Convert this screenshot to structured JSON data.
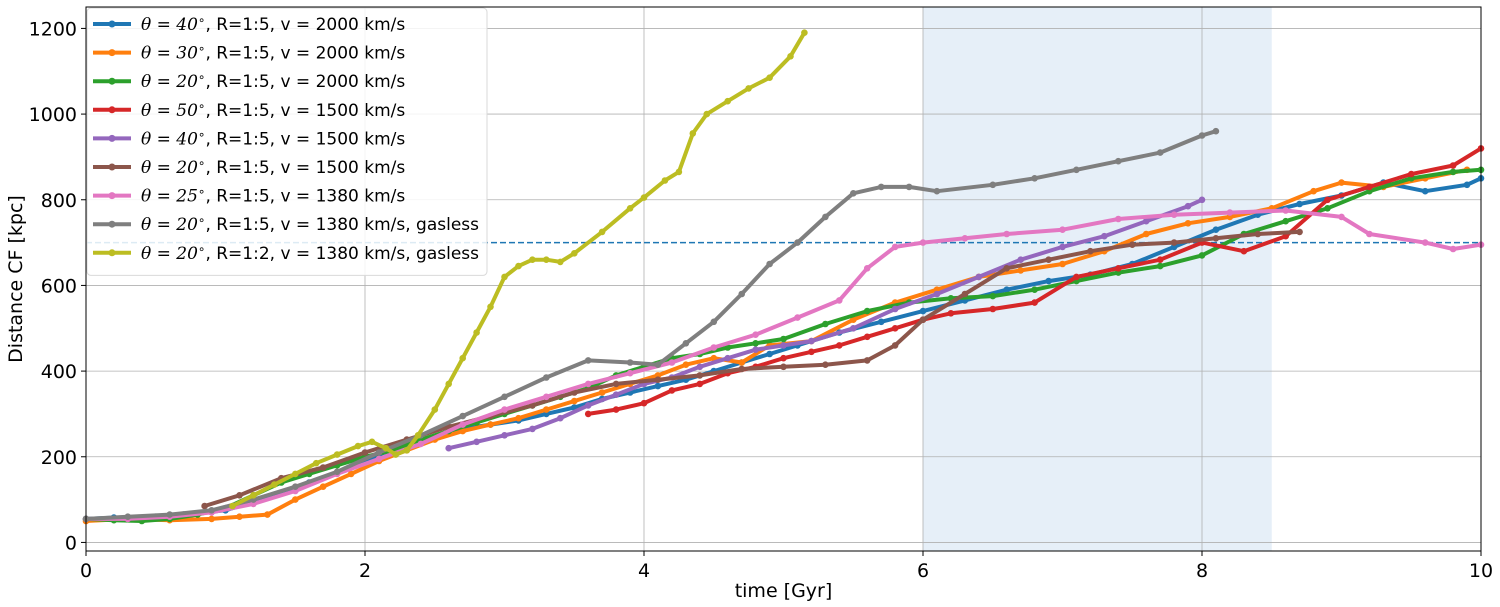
{
  "chart_data": {
    "type": "line",
    "xlabel": "time [Gyr]",
    "ylabel": "Distance CF [kpc]",
    "xlim": [
      0,
      10
    ],
    "ylim": [
      -20,
      1250
    ],
    "xticks": [
      0,
      2,
      4,
      6,
      8,
      10
    ],
    "yticks": [
      0,
      200,
      400,
      600,
      800,
      1000,
      1200
    ],
    "grid": true,
    "legend_position": "top-left",
    "shaded_region": {
      "x": [
        6.0,
        8.5
      ],
      "color": "#e6eff8"
    },
    "reference_line": {
      "y": 700,
      "style": "dashed",
      "color": "#1f77b4"
    },
    "series": [
      {
        "name": "θ = 40°, R=1:5, v = 2000 km/s",
        "theta_sym": "θ = 40",
        "rest": ", R=1:5, v = 2000 km/s",
        "color": "#1f77b4",
        "x": [
          0,
          0.2,
          0.5,
          0.7,
          1.0,
          1.3,
          1.6,
          1.9,
          2.1,
          2.4,
          2.7,
          2.9,
          3.1,
          3.3,
          3.5,
          3.7,
          3.9,
          4.1,
          4.3,
          4.5,
          4.7,
          4.9,
          5.1,
          5.4,
          5.7,
          6.0,
          6.3,
          6.6,
          6.9,
          7.2,
          7.5,
          7.8,
          8.1,
          8.4,
          8.7,
          9.0,
          9.3,
          9.6,
          9.9,
          10.0
        ],
        "y": [
          55,
          58,
          60,
          65,
          75,
          105,
          140,
          175,
          205,
          240,
          265,
          275,
          285,
          300,
          315,
          335,
          350,
          365,
          380,
          400,
          420,
          440,
          460,
          490,
          515,
          540,
          565,
          590,
          610,
          625,
          650,
          690,
          730,
          765,
          790,
          810,
          840,
          820,
          835,
          850
        ]
      },
      {
        "name": "θ = 30°, R=1:5, v = 2000 km/s",
        "theta_sym": "θ = 30",
        "rest": ", R=1:5, v = 2000 km/s",
        "color": "#ff7f0e",
        "x": [
          0,
          0.3,
          0.6,
          0.9,
          1.1,
          1.3,
          1.5,
          1.7,
          1.9,
          2.1,
          2.3,
          2.5,
          2.7,
          2.9,
          3.1,
          3.3,
          3.5,
          3.7,
          3.9,
          4.1,
          4.3,
          4.5,
          4.7,
          4.9,
          5.2,
          5.5,
          5.8,
          6.1,
          6.4,
          6.7,
          7.0,
          7.3,
          7.6,
          7.9,
          8.2,
          8.5,
          8.8,
          9.0,
          9.3,
          9.6,
          9.9
        ],
        "y": [
          50,
          55,
          52,
          55,
          60,
          65,
          100,
          130,
          160,
          190,
          215,
          240,
          260,
          275,
          290,
          310,
          330,
          350,
          370,
          390,
          415,
          430,
          420,
          460,
          470,
          520,
          560,
          590,
          620,
          635,
          650,
          680,
          720,
          745,
          760,
          780,
          820,
          840,
          830,
          850,
          870
        ]
      },
      {
        "name": "θ = 20°, R=1:5, v = 2000 km/s",
        "theta_sym": "θ = 20",
        "rest": ", R=1:5, v = 2000 km/s",
        "color": "#2ca02c",
        "x": [
          0,
          0.2,
          0.4,
          0.6,
          0.8,
          1.0,
          1.2,
          1.4,
          1.6,
          1.8,
          2.0,
          2.2,
          2.4,
          2.6,
          2.8,
          3.0,
          3.2,
          3.4,
          3.6,
          3.8,
          4.0,
          4.2,
          4.4,
          4.6,
          4.8,
          5.0,
          5.3,
          5.6,
          5.9,
          6.2,
          6.5,
          6.8,
          7.1,
          7.4,
          7.7,
          8.0,
          8.3,
          8.6,
          8.9,
          9.2,
          9.5,
          9.8,
          10.0
        ],
        "y": [
          55,
          52,
          50,
          55,
          65,
          80,
          110,
          140,
          160,
          180,
          200,
          215,
          240,
          260,
          280,
          300,
          320,
          340,
          360,
          390,
          410,
          430,
          440,
          455,
          465,
          475,
          510,
          540,
          560,
          570,
          575,
          590,
          610,
          630,
          645,
          670,
          720,
          750,
          780,
          820,
          850,
          865,
          870
        ]
      },
      {
        "name": "θ = 50°, R=1:5, v = 1500 km/s",
        "theta_sym": "θ = 50",
        "rest": ", R=1:5, v = 1500 km/s",
        "color": "#d62728",
        "x": [
          3.6,
          3.8,
          4.0,
          4.2,
          4.4,
          4.6,
          4.8,
          5.0,
          5.2,
          5.4,
          5.6,
          5.8,
          6.0,
          6.2,
          6.5,
          6.8,
          7.1,
          7.4,
          7.7,
          8.0,
          8.3,
          8.6,
          8.9,
          9.2,
          9.5,
          9.8,
          10.0
        ],
        "y": [
          300,
          310,
          325,
          355,
          370,
          395,
          410,
          430,
          445,
          460,
          480,
          500,
          520,
          535,
          545,
          560,
          620,
          640,
          660,
          700,
          680,
          715,
          800,
          830,
          860,
          880,
          920
        ]
      },
      {
        "name": "θ = 40°, R=1:5, v = 1500 km/s",
        "theta_sym": "θ = 40",
        "rest": ", R=1:5, v = 1500 km/s",
        "color": "#9467bd",
        "x": [
          2.6,
          2.8,
          3.0,
          3.2,
          3.4,
          3.6,
          3.8,
          4.0,
          4.2,
          4.4,
          4.6,
          4.8,
          5.0,
          5.2,
          5.5,
          5.8,
          6.1,
          6.4,
          6.7,
          7.0,
          7.3,
          7.6,
          7.9,
          8.0
        ],
        "y": [
          220,
          235,
          250,
          265,
          290,
          320,
          345,
          370,
          385,
          410,
          430,
          450,
          460,
          470,
          500,
          545,
          580,
          620,
          660,
          690,
          715,
          750,
          785,
          800
        ]
      },
      {
        "name": "θ = 20°, R=1:5, v = 1500 km/s",
        "theta_sym": "θ = 20",
        "rest": ", R=1:5, v = 1500 km/s",
        "color": "#8c564b",
        "x": [
          0.85,
          1.1,
          1.4,
          1.7,
          2.0,
          2.3,
          2.6,
          2.9,
          3.2,
          3.5,
          3.8,
          4.1,
          4.4,
          4.7,
          5.0,
          5.3,
          5.6,
          5.8,
          6.0,
          6.3,
          6.6,
          6.9,
          7.2,
          7.5,
          7.8,
          8.1,
          8.4,
          8.7
        ],
        "y": [
          85,
          110,
          150,
          175,
          210,
          240,
          270,
          295,
          320,
          350,
          370,
          380,
          390,
          405,
          410,
          415,
          425,
          460,
          520,
          580,
          640,
          660,
          680,
          695,
          700,
          710,
          720,
          725
        ]
      },
      {
        "name": "θ = 25°, R=1:5, v = 1380 km/s",
        "theta_sym": "θ = 25",
        "rest": ", R=1:5, v = 1380 km/s",
        "color": "#e377c2",
        "x": [
          0,
          0.3,
          0.6,
          0.9,
          1.2,
          1.5,
          1.8,
          2.1,
          2.4,
          2.7,
          3.0,
          3.3,
          3.6,
          3.9,
          4.2,
          4.5,
          4.8,
          5.1,
          5.4,
          5.6,
          5.8,
          6.0,
          6.3,
          6.6,
          7.0,
          7.4,
          7.8,
          8.2,
          8.6,
          9.0,
          9.2,
          9.6,
          9.8,
          10.0
        ],
        "y": [
          55,
          55,
          60,
          70,
          90,
          120,
          160,
          195,
          230,
          275,
          310,
          340,
          370,
          395,
          420,
          455,
          485,
          525,
          565,
          640,
          690,
          700,
          710,
          720,
          730,
          755,
          765,
          770,
          775,
          760,
          720,
          700,
          685,
          695
        ]
      },
      {
        "name": "θ = 20°, R=1:5, v = 1380 km/s, gasless",
        "theta_sym": "θ = 20",
        "rest": ", R=1:5, v = 1380 km/s, gasless",
        "color": "#7f7f7f",
        "x": [
          0,
          0.3,
          0.6,
          0.9,
          1.2,
          1.5,
          1.8,
          2.1,
          2.4,
          2.7,
          3.0,
          3.3,
          3.6,
          3.9,
          4.1,
          4.3,
          4.5,
          4.7,
          4.9,
          5.1,
          5.3,
          5.5,
          5.7,
          5.9,
          6.1,
          6.5,
          6.8,
          7.1,
          7.4,
          7.7,
          8.0,
          8.1
        ],
        "y": [
          55,
          60,
          65,
          75,
          100,
          130,
          165,
          210,
          250,
          295,
          340,
          385,
          425,
          420,
          415,
          465,
          515,
          580,
          650,
          700,
          760,
          815,
          830,
          830,
          820,
          835,
          850,
          870,
          890,
          910,
          950,
          960
        ]
      },
      {
        "name": "θ = 20°, R=1:2, v = 1380 km/s, gasless",
        "theta_sym": "θ = 20",
        "rest": ", R=1:2, v = 1380 km/s, gasless",
        "color": "#bcbd22",
        "x": [
          1.05,
          1.2,
          1.35,
          1.5,
          1.65,
          1.8,
          1.95,
          2.05,
          2.15,
          2.22,
          2.3,
          2.38,
          2.5,
          2.6,
          2.7,
          2.8,
          2.9,
          3.0,
          3.1,
          3.2,
          3.3,
          3.4,
          3.5,
          3.7,
          3.9,
          4.0,
          4.15,
          4.25,
          4.35,
          4.45,
          4.6,
          4.75,
          4.9,
          5.05,
          5.15
        ],
        "y": [
          85,
          110,
          135,
          160,
          185,
          205,
          225,
          235,
          220,
          205,
          215,
          250,
          310,
          370,
          430,
          490,
          550,
          620,
          645,
          660,
          660,
          655,
          675,
          725,
          780,
          805,
          845,
          865,
          955,
          1000,
          1030,
          1060,
          1085,
          1135,
          1190
        ]
      }
    ]
  }
}
